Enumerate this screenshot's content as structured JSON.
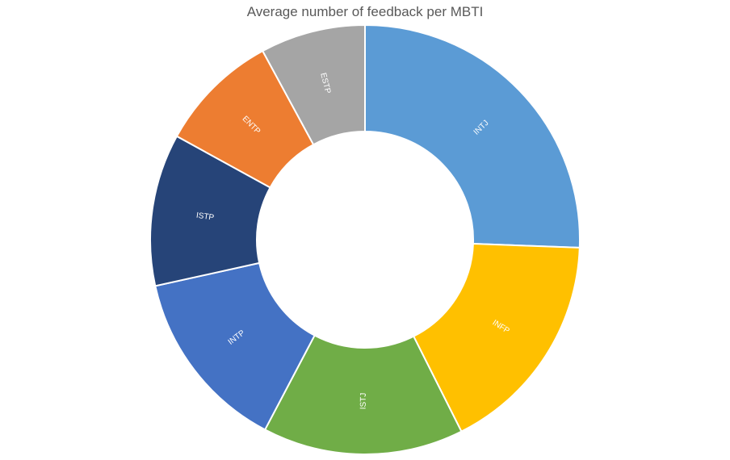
{
  "chart_data": {
    "type": "pie",
    "variant": "doughnut",
    "title": "Average number of feedback per MBTI",
    "slice_labels_shown": true,
    "legend": "none",
    "slices": [
      {
        "label": "INTJ",
        "value": 25.9,
        "color": "#5B9BD5"
      },
      {
        "label": "INFP",
        "value": 17.2,
        "color": "#FFC000"
      },
      {
        "label": "ISTJ",
        "value": 15.3,
        "color": "#70AD47"
      },
      {
        "label": "INTP",
        "value": 14.0,
        "color": "#4472C4"
      },
      {
        "label": "ISTP",
        "value": 11.6,
        "color": "#264478"
      },
      {
        "label": "ENTP",
        "value": 9.2,
        "color": "#ED7D31"
      },
      {
        "label": "ESTP",
        "value": 8.0,
        "color": "#A5A5A5"
      }
    ]
  }
}
